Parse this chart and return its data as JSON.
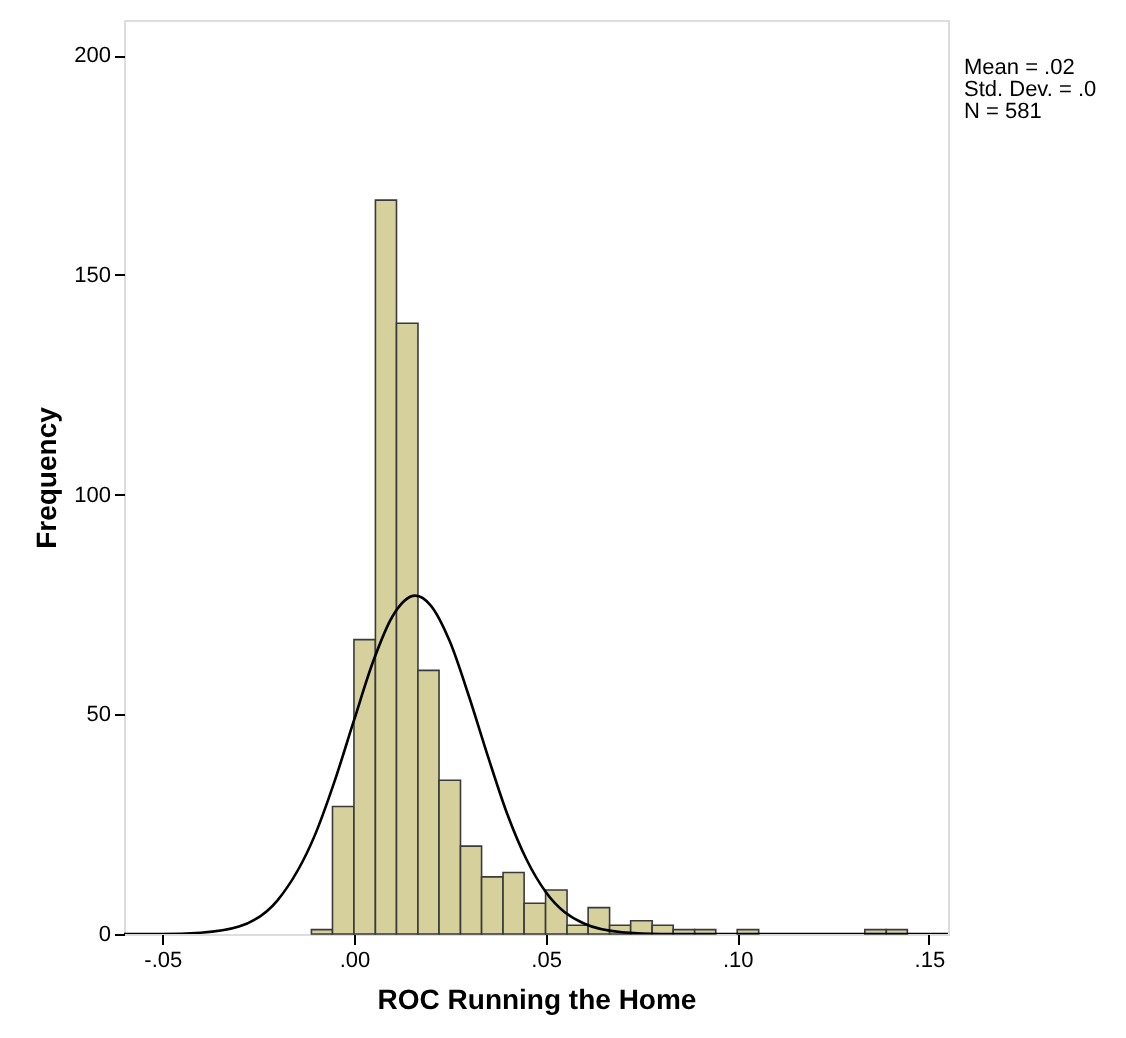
{
  "chart_data": {
    "type": "histogram",
    "xlabel": "ROC Running the Home",
    "ylabel": "Frequency",
    "bins": [
      -0.0111,
      -0.0056,
      0,
      0.0056,
      0.0111,
      0.0167,
      0.0222,
      0.0278,
      0.0333,
      0.0389,
      0.0444,
      0.05,
      0.0556,
      0.0611,
      0.0667,
      0.0722,
      0.0778,
      0.0833,
      0.0889,
      0.0944,
      0.1,
      0.1056,
      0.1111,
      0.1167,
      0.1222,
      0.1278,
      0.1333,
      0.1389,
      0.1444
    ],
    "series": [
      {
        "color": "#d5d09c",
        "values": [
          1,
          29,
          67,
          167,
          139,
          60,
          35,
          20,
          13,
          14,
          7,
          10,
          2,
          6,
          2,
          3,
          2,
          1,
          1,
          0,
          1,
          0,
          0,
          0,
          0,
          0,
          1,
          1
        ]
      },
      {
        "type": "line",
        "color": "#000000",
        "x": [
          -0.06,
          -0.05,
          -0.04,
          -0.03,
          -0.02,
          -0.01,
          -0.005,
          0,
          0.005,
          0.01,
          0.016,
          0.02,
          0.025,
          0.03,
          0.035,
          0.04,
          0.045,
          0.05,
          0.06,
          0.07,
          0.08,
          0.09,
          0.155
        ],
        "values": [
          0,
          0,
          0.3,
          1.7,
          7.6,
          22.9,
          34.9,
          48.6,
          62,
          72.2,
          77,
          74.8,
          66.6,
          54.1,
          40.3,
          27.3,
          17,
          9.6,
          2.4,
          0.4,
          0,
          0,
          0
        ]
      }
    ],
    "xlim": [
      -0.06,
      0.155
    ],
    "xticks": [
      {
        "value": -0.05,
        "label": "-.05"
      },
      {
        "value": 0,
        "label": ".00"
      },
      {
        "value": 0.05,
        "label": ".05"
      },
      {
        "value": 0.1,
        "label": ".10"
      },
      {
        "value": 0.15,
        "label": ".15"
      }
    ],
    "ylim": [
      0,
      208
    ],
    "yticks": [
      0,
      50,
      100,
      150,
      200
    ],
    "grid": false,
    "annotations": [
      "Mean = .02",
      "Std. Dev. = .0",
      "N = 581"
    ]
  }
}
